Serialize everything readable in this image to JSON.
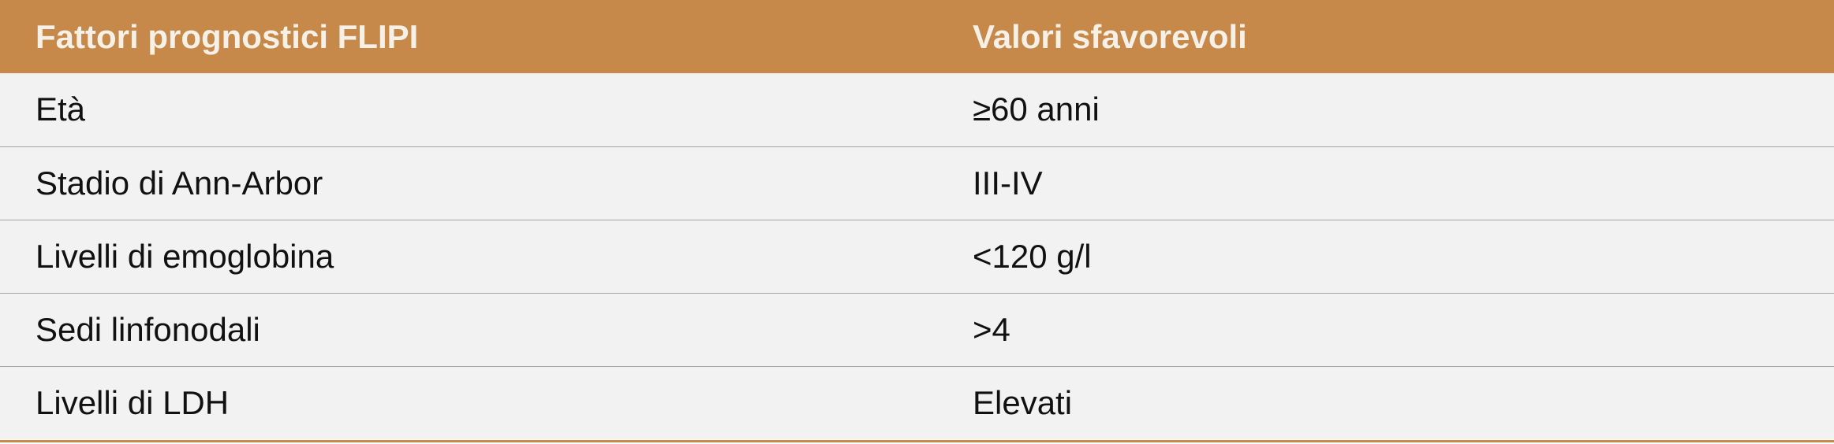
{
  "table": {
    "headers": [
      "Fattori prognostici FLIPI",
      "Valori sfavorevoli"
    ],
    "rows": [
      [
        "Età",
        "≥60 anni"
      ],
      [
        "Stadio di Ann-Arbor",
        "III-IV"
      ],
      [
        "Livelli di emoglobina",
        "<120 g/l"
      ],
      [
        "Sedi linfonodali",
        ">4"
      ],
      [
        "Livelli di LDH",
        "Elevati"
      ]
    ]
  },
  "colors": {
    "header_background": "#c6894a",
    "header_text": "#f7f0e6",
    "row_background": "#f2f2f3",
    "row_divider": "#a3a3a3",
    "body_text": "#111111"
  }
}
